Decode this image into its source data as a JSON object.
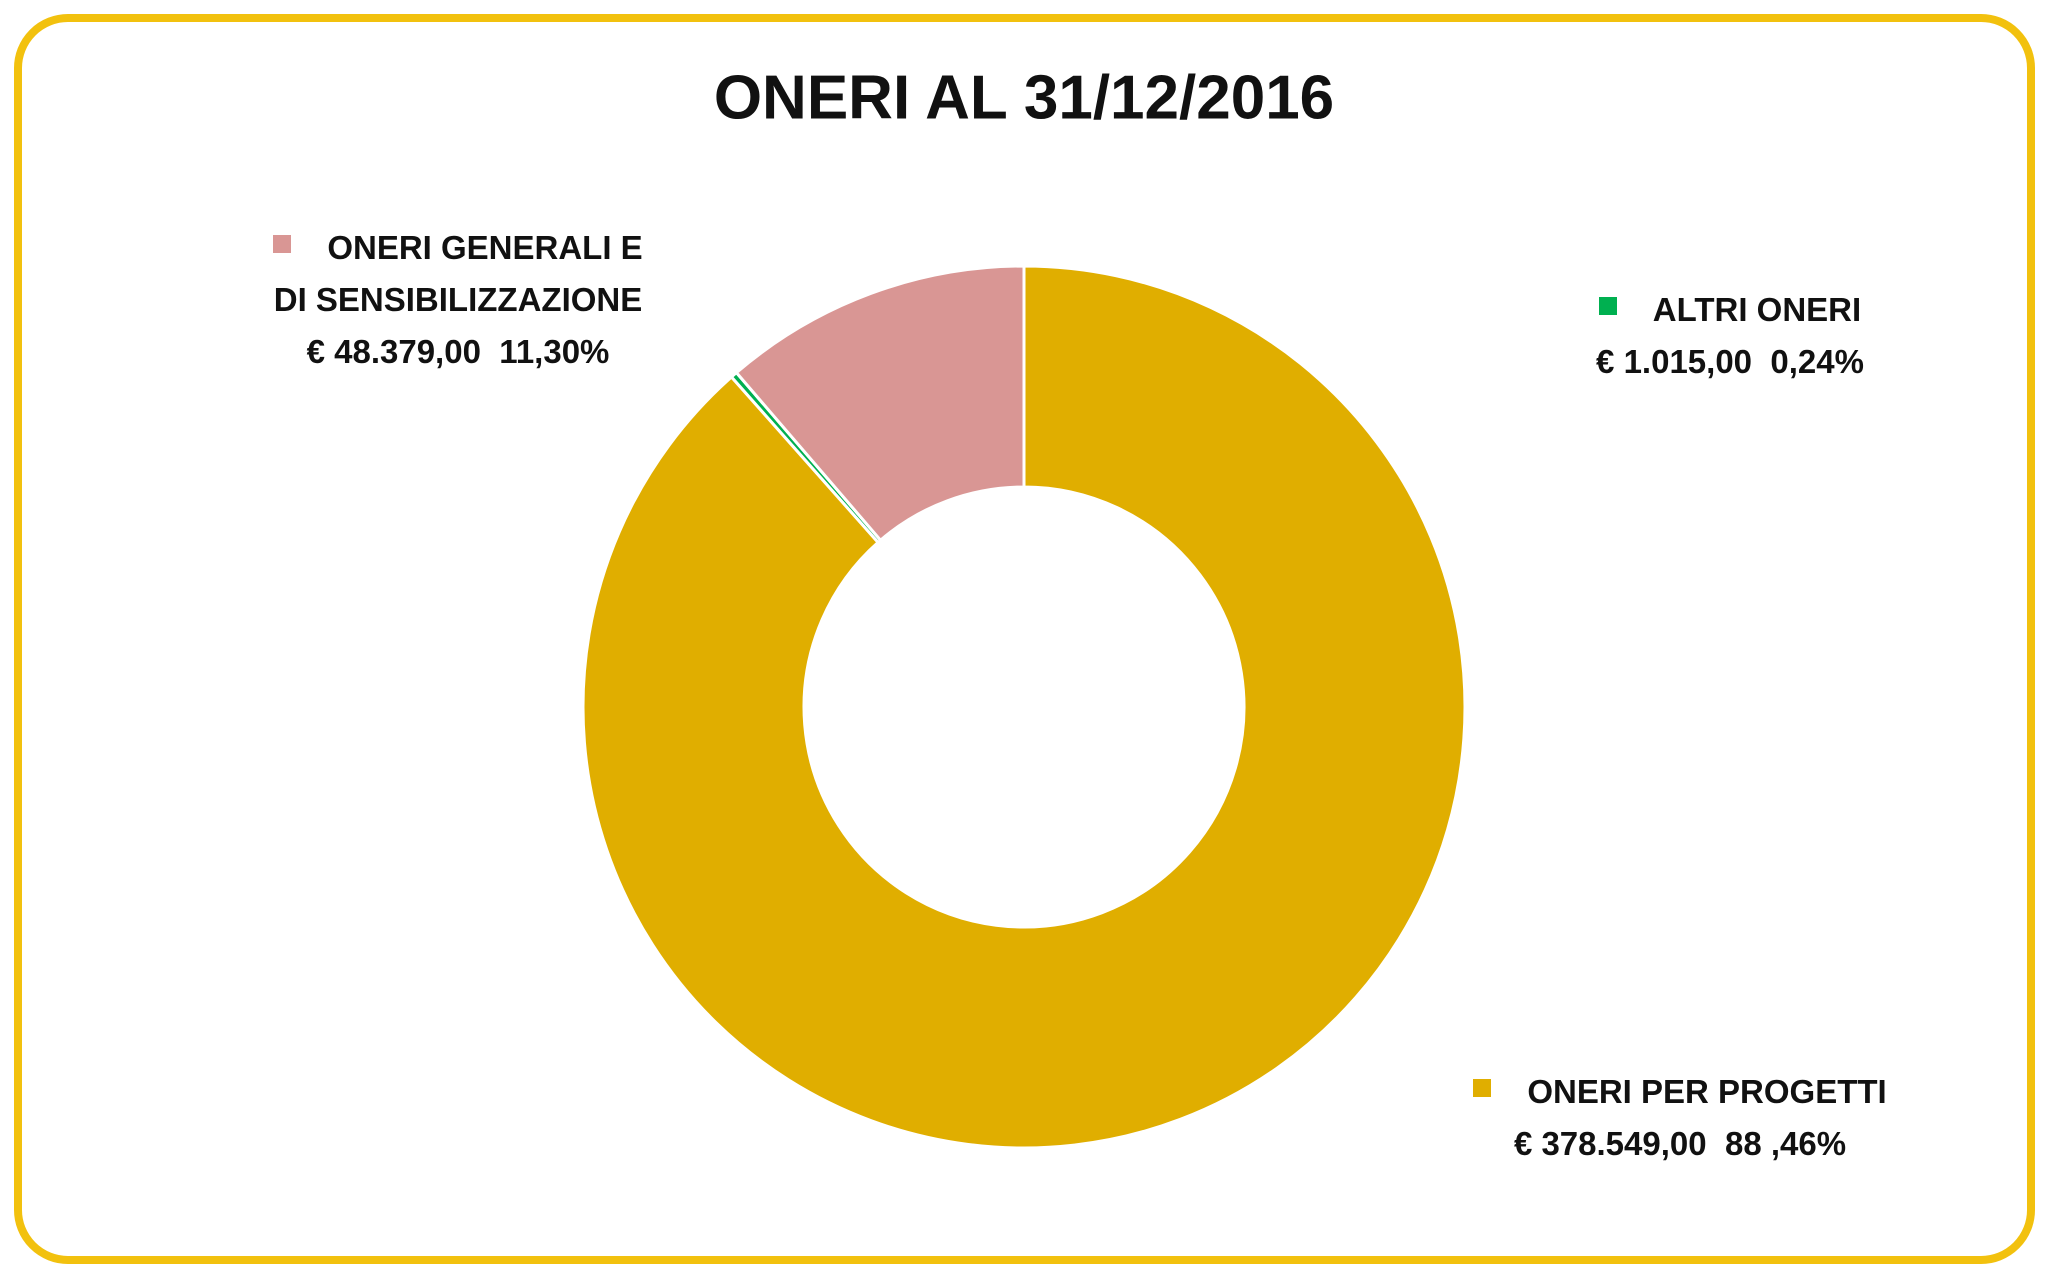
{
  "chart_data": {
    "type": "donut",
    "title": "ONERI AL 31/12/2016",
    "categories": [
      "ONERI PER PROGETTI",
      "ALTRI ONERI",
      "ONERI GENERALI E DI SENSIBILIZZAZIONE"
    ],
    "values": [
      378549,
      1015,
      48379
    ],
    "value_labels": [
      "€ 378.549,00",
      "€ 1.015,00",
      "€ 48.379,00"
    ],
    "percents": [
      88.46,
      0.24,
      11.3
    ],
    "percent_labels": [
      "88 ,46%",
      "0,24%",
      "11,30%"
    ],
    "colors": [
      "#e0ae00",
      "#00b050",
      "#d99694"
    ]
  }
}
